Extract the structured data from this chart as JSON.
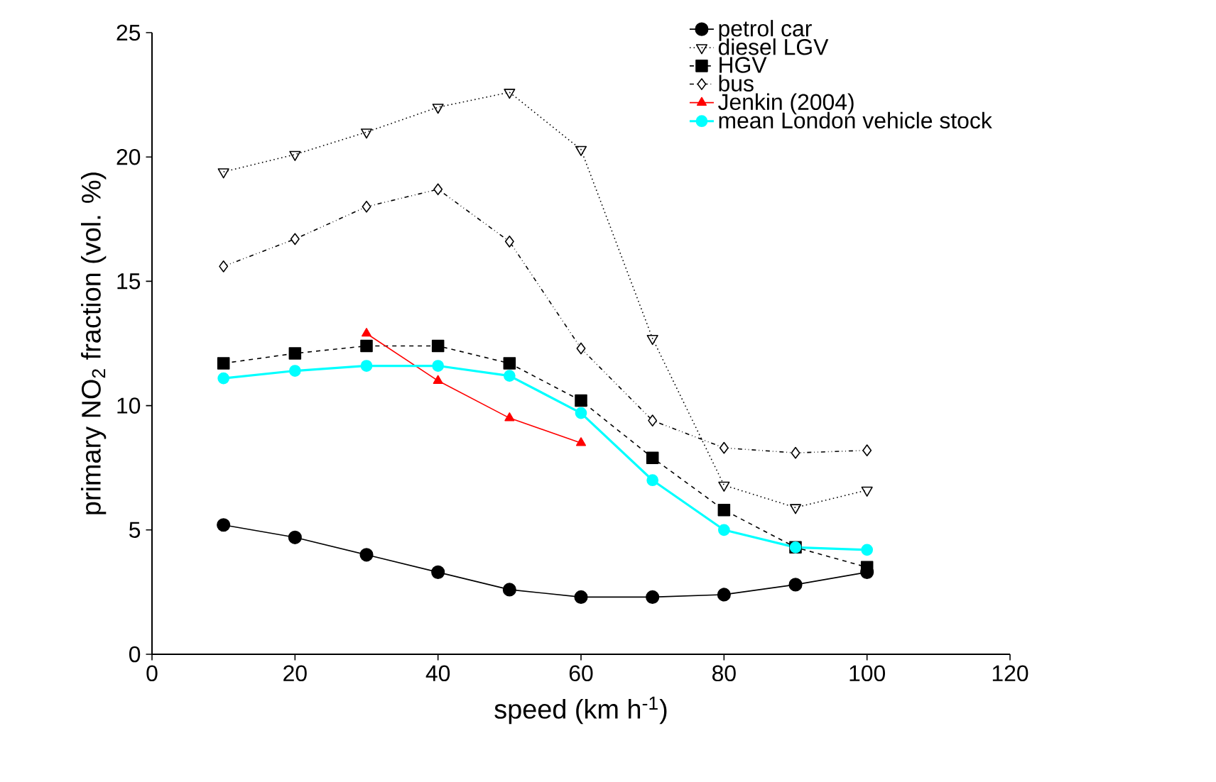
{
  "chart_data": {
    "type": "line",
    "xlabel": "speed (km h$^{-1}$)",
    "ylabel": "primary NO$_{2}$ fraction (vol. %)",
    "xlim": [
      0,
      120
    ],
    "xticks": [
      0,
      20,
      40,
      60,
      80,
      100,
      120
    ],
    "ylim": [
      0,
      25
    ],
    "yticks": [
      0,
      5,
      10,
      15,
      20,
      25
    ],
    "grid": false,
    "legend": "top right",
    "series": [
      {
        "name": "petrol car",
        "color": "#000000",
        "marker": "circle",
        "line_style": "solid",
        "x": [
          10,
          20,
          30,
          40,
          50,
          60,
          70,
          80,
          90,
          100
        ],
        "values": [
          5.2,
          4.7,
          4.0,
          3.3,
          2.6,
          2.3,
          2.3,
          2.4,
          2.8,
          3.3
        ]
      },
      {
        "name": "diesel LGV",
        "color": "#000000",
        "marker": "triangle",
        "line_style": "dotted",
        "x": [
          10,
          20,
          30,
          40,
          50,
          60,
          70,
          80,
          90,
          100
        ],
        "values": [
          19.4,
          20.1,
          21.0,
          22.0,
          22.6,
          20.3,
          12.7,
          6.8,
          5.9,
          6.6
        ]
      },
      {
        "name": "HGV",
        "color": "#000000",
        "marker": "square",
        "line_style": "dashed",
        "x": [
          10,
          20,
          30,
          40,
          50,
          60,
          70,
          80,
          90,
          100
        ],
        "values": [
          11.7,
          12.1,
          12.4,
          12.4,
          11.7,
          10.2,
          7.9,
          5.8,
          4.3,
          3.5
        ]
      },
      {
        "name": "bus",
        "color": "#000000",
        "marker": "diamond",
        "line_style": "dashdot",
        "x": [
          10,
          20,
          30,
          40,
          50,
          60,
          70,
          80,
          90,
          100
        ],
        "values": [
          15.6,
          16.7,
          18.0,
          18.7,
          16.6,
          12.3,
          9.4,
          8.3,
          8.1,
          8.2
        ]
      },
      {
        "name": "Jenkin  (2004)",
        "color": "#ff0000",
        "marker": "triangle",
        "line_style": "solid",
        "x": [
          30,
          40,
          50,
          60
        ],
        "values": [
          12.9,
          11.0,
          9.5,
          8.5
        ]
      },
      {
        "name": "mean London vehicle stock",
        "color": "#00ffff",
        "marker": "circle",
        "line_style": "solid",
        "x": [
          10,
          20,
          30,
          40,
          50,
          60,
          70,
          80,
          90,
          100
        ],
        "values": [
          11.1,
          11.4,
          11.6,
          11.6,
          11.2,
          9.7,
          7.0,
          5.0,
          4.3,
          4.2
        ]
      }
    ]
  }
}
